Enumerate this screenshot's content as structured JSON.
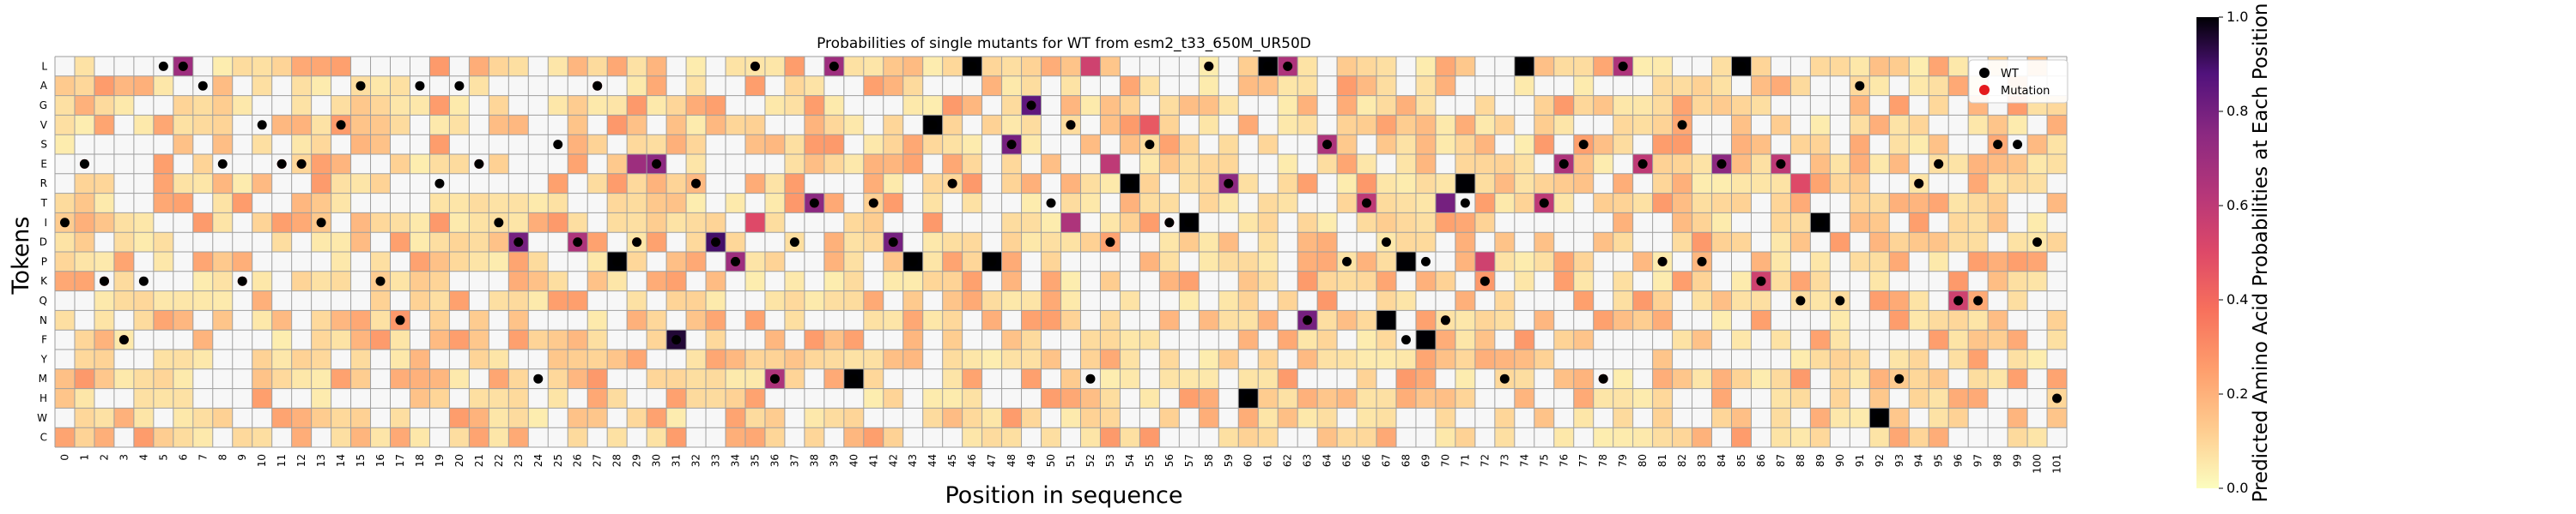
{
  "chart_data": {
    "type": "heatmap",
    "title": "Probabilities of single mutants for WT from esm2_t33_650M_UR50D",
    "xlabel": "Position in sequence",
    "ylabel": "Tokens",
    "tokens": [
      "L",
      "A",
      "G",
      "V",
      "S",
      "E",
      "R",
      "T",
      "I",
      "D",
      "P",
      "K",
      "Q",
      "N",
      "F",
      "Y",
      "M",
      "H",
      "W",
      "C"
    ],
    "positions": [
      0,
      1,
      2,
      3,
      4,
      5,
      6,
      7,
      8,
      9,
      10,
      11,
      12,
      13,
      14,
      15,
      16,
      17,
      18,
      19,
      20,
      21,
      22,
      23,
      24,
      25,
      26,
      27,
      28,
      29,
      30,
      31,
      32,
      33,
      34,
      35,
      36,
      37,
      38,
      39,
      40,
      41,
      42,
      43,
      44,
      45,
      46,
      47,
      48,
      49,
      50,
      51,
      52,
      53,
      54,
      55,
      56,
      57,
      58,
      59,
      60,
      61,
      62,
      63,
      64,
      65,
      66,
      67,
      68,
      69,
      70,
      71,
      72,
      73,
      74,
      75,
      76,
      77,
      78,
      79,
      80,
      81,
      82,
      83,
      84,
      85,
      86,
      87,
      88,
      89,
      90,
      91,
      92,
      93,
      94,
      95,
      96,
      97,
      98,
      99,
      100,
      101
    ],
    "wild_type_token_by_position": [
      "I",
      "E",
      "K",
      "F",
      "K",
      "L",
      "L",
      "A",
      "E",
      "K",
      "V",
      "E",
      "E",
      "I",
      "V",
      "A",
      "K",
      "N",
      "A",
      "R",
      "A",
      "E",
      "I",
      "D",
      "M",
      "S",
      "D",
      "A",
      "P",
      "D",
      "E",
      "F",
      "R",
      "D",
      "P",
      "L",
      "M",
      "D",
      "T",
      "L",
      "M",
      "T",
      "D",
      "P",
      "V",
      "R",
      "L",
      "P",
      "S",
      "G",
      "T",
      "V",
      "M",
      "D",
      "R",
      "S",
      "I",
      "I",
      "L",
      "R",
      "H",
      "L",
      "L",
      "N",
      "S",
      "P",
      "T",
      "D",
      "F",
      "P",
      "N",
      "T",
      "K",
      "M",
      "L",
      "T",
      "E",
      "S",
      "M",
      "L",
      "E",
      "P",
      "V",
      "P",
      "E",
      "L",
      "K",
      "E",
      "Q",
      "I",
      "Q",
      "A",
      "W",
      "M",
      "R",
      "E",
      "Q",
      "Q",
      "S",
      "S",
      "D",
      "H"
    ],
    "mutation_cells": [
      {
        "position": 1,
        "token": "E"
      },
      {
        "position": 2,
        "token": "K"
      },
      {
        "position": 3,
        "token": "F"
      },
      {
        "position": 6,
        "token": "L"
      },
      {
        "position": 9,
        "token": "K"
      },
      {
        "position": 11,
        "token": "E"
      },
      {
        "position": 12,
        "token": "E"
      },
      {
        "position": 21,
        "token": "E"
      },
      {
        "position": 23,
        "token": "D"
      },
      {
        "position": 26,
        "token": "D"
      },
      {
        "position": 27,
        "token": "A"
      },
      {
        "position": 29,
        "token": "D"
      },
      {
        "position": 30,
        "token": "E"
      },
      {
        "position": 32,
        "token": "R"
      },
      {
        "position": 33,
        "token": "D"
      },
      {
        "position": 34,
        "token": "P"
      },
      {
        "position": 35,
        "token": "L"
      },
      {
        "position": 36,
        "token": "M"
      },
      {
        "position": 38,
        "token": "T"
      },
      {
        "position": 39,
        "token": "L"
      },
      {
        "position": 41,
        "token": "T"
      },
      {
        "position": 42,
        "token": "D"
      },
      {
        "position": 45,
        "token": "R"
      },
      {
        "position": 48,
        "token": "S"
      },
      {
        "position": 49,
        "token": "G"
      },
      {
        "position": 51,
        "token": "V"
      },
      {
        "position": 53,
        "token": "D"
      },
      {
        "position": 56,
        "token": "I"
      },
      {
        "position": 58,
        "token": "L"
      },
      {
        "position": 59,
        "token": "R"
      },
      {
        "position": 62,
        "token": "L"
      },
      {
        "position": 63,
        "token": "N"
      },
      {
        "position": 64,
        "token": "S"
      },
      {
        "position": 66,
        "token": "T"
      },
      {
        "position": 70,
        "token": "N"
      },
      {
        "position": 72,
        "token": "K"
      },
      {
        "position": 75,
        "token": "T"
      },
      {
        "position": 76,
        "token": "E"
      },
      {
        "position": 78,
        "token": "M"
      },
      {
        "position": 79,
        "token": "L"
      },
      {
        "position": 80,
        "token": "E"
      },
      {
        "position": 81,
        "token": "P"
      },
      {
        "position": 84,
        "token": "E"
      },
      {
        "position": 86,
        "token": "K"
      },
      {
        "position": 87,
        "token": "E"
      },
      {
        "position": 94,
        "token": "R"
      },
      {
        "position": 95,
        "token": "E"
      },
      {
        "position": 96,
        "token": "Q"
      }
    ],
    "high_probability_cells": [
      {
        "position": 6,
        "token": "L",
        "value": 0.7
      },
      {
        "position": 23,
        "token": "D",
        "value": 0.8
      },
      {
        "position": 26,
        "token": "D",
        "value": 0.65
      },
      {
        "position": 28,
        "token": "P",
        "value": 1.0
      },
      {
        "position": 29,
        "token": "E",
        "value": 0.7
      },
      {
        "position": 30,
        "token": "E",
        "value": 0.75
      },
      {
        "position": 31,
        "token": "F",
        "value": 0.95
      },
      {
        "position": 33,
        "token": "D",
        "value": 0.9
      },
      {
        "position": 34,
        "token": "P",
        "value": 0.7
      },
      {
        "position": 35,
        "token": "I",
        "value": 0.5
      },
      {
        "position": 36,
        "token": "M",
        "value": 0.65
      },
      {
        "position": 38,
        "token": "T",
        "value": 0.75
      },
      {
        "position": 39,
        "token": "L",
        "value": 0.7
      },
      {
        "position": 40,
        "token": "M",
        "value": 1.0
      },
      {
        "position": 42,
        "token": "D",
        "value": 0.8
      },
      {
        "position": 43,
        "token": "P",
        "value": 1.0
      },
      {
        "position": 44,
        "token": "V",
        "value": 1.0
      },
      {
        "position": 46,
        "token": "L",
        "value": 1.0
      },
      {
        "position": 47,
        "token": "P",
        "value": 1.0
      },
      {
        "position": 48,
        "token": "S",
        "value": 0.8
      },
      {
        "position": 49,
        "token": "G",
        "value": 0.85
      },
      {
        "position": 51,
        "token": "I",
        "value": 0.65
      },
      {
        "position": 52,
        "token": "L",
        "value": 0.55
      },
      {
        "position": 53,
        "token": "E",
        "value": 0.6
      },
      {
        "position": 54,
        "token": "R",
        "value": 1.0
      },
      {
        "position": 55,
        "token": "V",
        "value": 0.45
      },
      {
        "position": 57,
        "token": "I",
        "value": 1.0
      },
      {
        "position": 59,
        "token": "R",
        "value": 0.75
      },
      {
        "position": 60,
        "token": "H",
        "value": 1.0
      },
      {
        "position": 61,
        "token": "L",
        "value": 1.0
      },
      {
        "position": 62,
        "token": "L",
        "value": 0.65
      },
      {
        "position": 63,
        "token": "N",
        "value": 0.8
      },
      {
        "position": 64,
        "token": "S",
        "value": 0.65
      },
      {
        "position": 66,
        "token": "T",
        "value": 0.6
      },
      {
        "position": 67,
        "token": "N",
        "value": 1.0
      },
      {
        "position": 68,
        "token": "P",
        "value": 1.0
      },
      {
        "position": 69,
        "token": "F",
        "value": 1.0
      },
      {
        "position": 70,
        "token": "T",
        "value": 0.8
      },
      {
        "position": 71,
        "token": "R",
        "value": 1.0
      },
      {
        "position": 72,
        "token": "P",
        "value": 0.55
      },
      {
        "position": 74,
        "token": "L",
        "value": 1.0
      },
      {
        "position": 75,
        "token": "T",
        "value": 0.6
      },
      {
        "position": 76,
        "token": "E",
        "value": 0.65
      },
      {
        "position": 79,
        "token": "L",
        "value": 0.65
      },
      {
        "position": 80,
        "token": "E",
        "value": 0.6
      },
      {
        "position": 84,
        "token": "E",
        "value": 0.75
      },
      {
        "position": 85,
        "token": "L",
        "value": 1.0
      },
      {
        "position": 86,
        "token": "K",
        "value": 0.55
      },
      {
        "position": 87,
        "token": "E",
        "value": 0.6
      },
      {
        "position": 88,
        "token": "R",
        "value": 0.5
      },
      {
        "position": 89,
        "token": "I",
        "value": 1.0
      },
      {
        "position": 92,
        "token": "W",
        "value": 1.0
      },
      {
        "position": 96,
        "token": "Q",
        "value": 0.55
      }
    ],
    "zlim": [
      0.0,
      1.0
    ],
    "colormap": "magma_r",
    "colorbar": {
      "label": "Predicted Amino Acid Probabilities at Each Position",
      "ticks": [
        "0.0",
        "0.2",
        "0.4",
        "0.6",
        "0.8",
        "1.0"
      ]
    },
    "legend": {
      "placement": "top-right",
      "entries": [
        {
          "label": "WT",
          "color": "#000000"
        },
        {
          "label": "Mutation",
          "color": "#e41a1c"
        }
      ]
    }
  }
}
